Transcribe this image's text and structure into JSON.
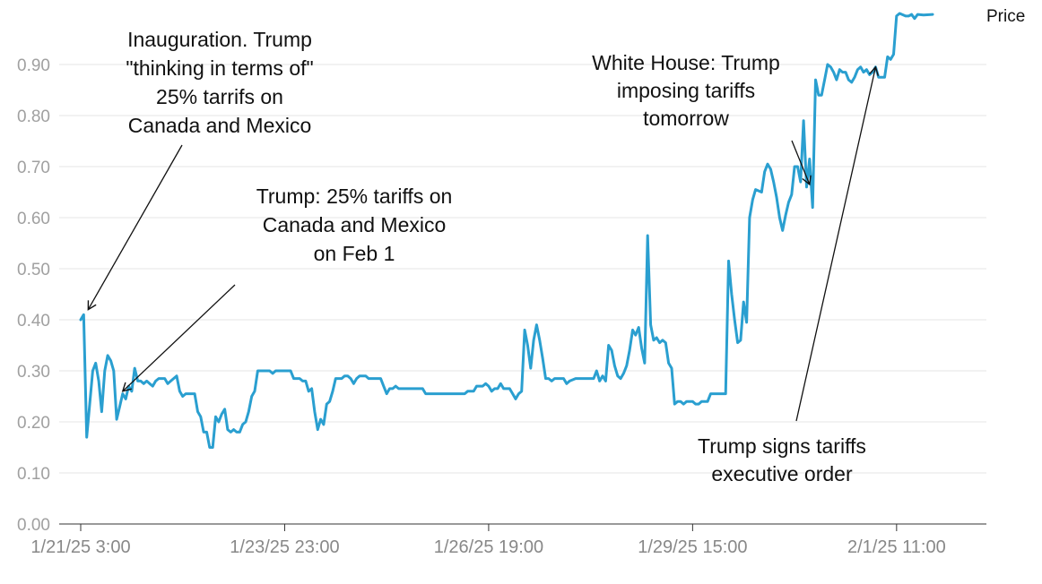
{
  "chart_data": {
    "type": "line",
    "title": "",
    "xlabel": "",
    "ylabel": "",
    "ylim": [
      0,
      1.0
    ],
    "grid": true,
    "legend": "top-right",
    "line_color": "#2a9fd0",
    "y_ticks": [
      "0.00",
      "0.10",
      "0.20",
      "0.30",
      "0.40",
      "0.50",
      "0.60",
      "0.70",
      "0.80",
      "0.90"
    ],
    "x_ticks": [
      "1/21/25 3:00",
      "1/23/25 23:00",
      "1/26/25 19:00",
      "1/29/25 15:00",
      "2/1/25 11:00"
    ],
    "x_tick_positions": [
      0,
      68,
      136,
      204,
      272
    ],
    "series": [
      {
        "name": "Price",
        "x_unit": "hours since 1/21/25 3:00",
        "points": [
          [
            0,
            0.4
          ],
          [
            1,
            0.41
          ],
          [
            2,
            0.17
          ],
          [
            4,
            0.3
          ],
          [
            5,
            0.315
          ],
          [
            6,
            0.28
          ],
          [
            7,
            0.22
          ],
          [
            8,
            0.3
          ],
          [
            9,
            0.33
          ],
          [
            10,
            0.32
          ],
          [
            11,
            0.3
          ],
          [
            12,
            0.205
          ],
          [
            13,
            0.23
          ],
          [
            14,
            0.255
          ],
          [
            15,
            0.245
          ],
          [
            16,
            0.27
          ],
          [
            17,
            0.26
          ],
          [
            18,
            0.305
          ],
          [
            19,
            0.28
          ],
          [
            20,
            0.28
          ],
          [
            21,
            0.275
          ],
          [
            22,
            0.28
          ],
          [
            23,
            0.275
          ],
          [
            24,
            0.27
          ],
          [
            25,
            0.28
          ],
          [
            26,
            0.285
          ],
          [
            28,
            0.285
          ],
          [
            29,
            0.275
          ],
          [
            30,
            0.28
          ],
          [
            32,
            0.29
          ],
          [
            33,
            0.26
          ],
          [
            34,
            0.25
          ],
          [
            35,
            0.255
          ],
          [
            38,
            0.255
          ],
          [
            39,
            0.22
          ],
          [
            40,
            0.21
          ],
          [
            41,
            0.18
          ],
          [
            42,
            0.18
          ],
          [
            43,
            0.15
          ],
          [
            44,
            0.15
          ],
          [
            45,
            0.21
          ],
          [
            46,
            0.2
          ],
          [
            47,
            0.215
          ],
          [
            48,
            0.225
          ],
          [
            49,
            0.185
          ],
          [
            50,
            0.18
          ],
          [
            51,
            0.185
          ],
          [
            52,
            0.18
          ],
          [
            53,
            0.18
          ],
          [
            54,
            0.195
          ],
          [
            55,
            0.2
          ],
          [
            56,
            0.22
          ],
          [
            57,
            0.25
          ],
          [
            58,
            0.26
          ],
          [
            59,
            0.3
          ],
          [
            63,
            0.3
          ],
          [
            64,
            0.295
          ],
          [
            65,
            0.3
          ],
          [
            70,
            0.3
          ],
          [
            71,
            0.285
          ],
          [
            73,
            0.285
          ],
          [
            74,
            0.28
          ],
          [
            75,
            0.28
          ],
          [
            76,
            0.26
          ],
          [
            77,
            0.265
          ],
          [
            78,
            0.22
          ],
          [
            79,
            0.185
          ],
          [
            80,
            0.205
          ],
          [
            81,
            0.195
          ],
          [
            82,
            0.235
          ],
          [
            83,
            0.24
          ],
          [
            84,
            0.26
          ],
          [
            85,
            0.285
          ],
          [
            87,
            0.285
          ],
          [
            88,
            0.29
          ],
          [
            89,
            0.29
          ],
          [
            90,
            0.285
          ],
          [
            91,
            0.275
          ],
          [
            92,
            0.285
          ],
          [
            93,
            0.29
          ],
          [
            95,
            0.29
          ],
          [
            96,
            0.285
          ],
          [
            100,
            0.285
          ],
          [
            101,
            0.27
          ],
          [
            102,
            0.255
          ],
          [
            103,
            0.265
          ],
          [
            104,
            0.265
          ],
          [
            105,
            0.27
          ],
          [
            106,
            0.265
          ],
          [
            114,
            0.265
          ],
          [
            115,
            0.255
          ],
          [
            128,
            0.255
          ],
          [
            129,
            0.26
          ],
          [
            131,
            0.26
          ],
          [
            132,
            0.27
          ],
          [
            134,
            0.27
          ],
          [
            135,
            0.275
          ],
          [
            136,
            0.27
          ],
          [
            137,
            0.26
          ],
          [
            138,
            0.265
          ],
          [
            139,
            0.265
          ],
          [
            140,
            0.275
          ],
          [
            141,
            0.265
          ],
          [
            143,
            0.265
          ],
          [
            144,
            0.255
          ],
          [
            145,
            0.245
          ],
          [
            146,
            0.255
          ],
          [
            147,
            0.26
          ],
          [
            148,
            0.38
          ],
          [
            149,
            0.35
          ],
          [
            150,
            0.305
          ],
          [
            151,
            0.36
          ],
          [
            152,
            0.39
          ],
          [
            153,
            0.36
          ],
          [
            154,
            0.325
          ],
          [
            155,
            0.285
          ],
          [
            156,
            0.285
          ],
          [
            157,
            0.28
          ],
          [
            158,
            0.285
          ],
          [
            161,
            0.285
          ],
          [
            162,
            0.275
          ],
          [
            163,
            0.28
          ],
          [
            165,
            0.285
          ],
          [
            171,
            0.285
          ],
          [
            172,
            0.3
          ],
          [
            173,
            0.28
          ],
          [
            174,
            0.29
          ],
          [
            175,
            0.28
          ],
          [
            176,
            0.35
          ],
          [
            177,
            0.34
          ],
          [
            178,
            0.31
          ],
          [
            179,
            0.29
          ],
          [
            180,
            0.285
          ],
          [
            181,
            0.295
          ],
          [
            182,
            0.31
          ],
          [
            183,
            0.34
          ],
          [
            184,
            0.38
          ],
          [
            185,
            0.37
          ],
          [
            186,
            0.385
          ],
          [
            187,
            0.345
          ],
          [
            188,
            0.315
          ],
          [
            189,
            0.565
          ],
          [
            190,
            0.39
          ],
          [
            191,
            0.36
          ],
          [
            192,
            0.365
          ],
          [
            193,
            0.355
          ],
          [
            194,
            0.36
          ],
          [
            195,
            0.355
          ],
          [
            196,
            0.315
          ],
          [
            197,
            0.305
          ],
          [
            198,
            0.235
          ],
          [
            199,
            0.24
          ],
          [
            200,
            0.24
          ],
          [
            201,
            0.235
          ],
          [
            202,
            0.24
          ],
          [
            204,
            0.24
          ],
          [
            205,
            0.235
          ],
          [
            206,
            0.235
          ],
          [
            207,
            0.24
          ],
          [
            209,
            0.24
          ],
          [
            210,
            0.255
          ],
          [
            215,
            0.255
          ],
          [
            216,
            0.515
          ],
          [
            217,
            0.45
          ],
          [
            218,
            0.4
          ],
          [
            219,
            0.355
          ],
          [
            220,
            0.36
          ],
          [
            221,
            0.435
          ],
          [
            222,
            0.395
          ],
          [
            223,
            0.6
          ],
          [
            224,
            0.635
          ],
          [
            225,
            0.655
          ],
          [
            227,
            0.65
          ],
          [
            228,
            0.69
          ],
          [
            229,
            0.705
          ],
          [
            230,
            0.695
          ],
          [
            231,
            0.67
          ],
          [
            232,
            0.64
          ],
          [
            233,
            0.6
          ],
          [
            234,
            0.575
          ],
          [
            235,
            0.605
          ],
          [
            236,
            0.63
          ],
          [
            237,
            0.645
          ],
          [
            238,
            0.7
          ],
          [
            239,
            0.7
          ],
          [
            240,
            0.67
          ],
          [
            241,
            0.79
          ],
          [
            242,
            0.66
          ],
          [
            243,
            0.715
          ],
          [
            244,
            0.62
          ],
          [
            245,
            0.87
          ],
          [
            246,
            0.84
          ],
          [
            247,
            0.84
          ],
          [
            248,
            0.87
          ],
          [
            249,
            0.9
          ],
          [
            250,
            0.895
          ],
          [
            251,
            0.885
          ],
          [
            252,
            0.87
          ],
          [
            253,
            0.89
          ],
          [
            254,
            0.885
          ],
          [
            255,
            0.885
          ],
          [
            256,
            0.87
          ],
          [
            257,
            0.865
          ],
          [
            258,
            0.875
          ],
          [
            259,
            0.89
          ],
          [
            260,
            0.895
          ],
          [
            261,
            0.885
          ],
          [
            262,
            0.89
          ],
          [
            263,
            0.88
          ],
          [
            264,
            0.885
          ],
          [
            265,
            0.895
          ],
          [
            266,
            0.875
          ],
          [
            267,
            0.875
          ],
          [
            268,
            0.875
          ],
          [
            269,
            0.915
          ],
          [
            270,
            0.91
          ],
          [
            271,
            0.92
          ],
          [
            272,
            0.995
          ],
          [
            273,
            1.0
          ],
          [
            275,
            0.995
          ],
          [
            276,
            0.995
          ],
          [
            277,
            0.998
          ],
          [
            278,
            0.99
          ],
          [
            279,
            0.998
          ],
          [
            281,
            0.997
          ],
          [
            284,
            0.998
          ]
        ]
      }
    ],
    "annotations": [
      {
        "lines": [
          "Inauguration. Trump",
          "\"thinking in terms of\"",
          "25% tarrifs on",
          "Canada and Mexico"
        ],
        "arrow_to": [
          1,
          0.42
        ]
      },
      {
        "lines": [
          "Trump: 25% tariffs on",
          "Canada and Mexico",
          "on Feb 1"
        ],
        "arrow_to": [
          14,
          0.26
        ]
      },
      {
        "lines": [
          "White House: Trump",
          "imposing tariffs",
          "tomorrow"
        ],
        "arrow_to": [
          243,
          0.665
        ]
      },
      {
        "lines": [
          "Trump signs tariffs",
          "executive order"
        ],
        "arrow_to": [
          265,
          0.895
        ]
      }
    ]
  }
}
